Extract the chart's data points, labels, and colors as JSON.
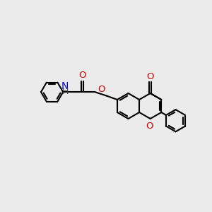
{
  "bg": "#ebebeb",
  "bc": "#000000",
  "Nc": "#0000cc",
  "Oc": "#cc0000",
  "lw": 1.5,
  "lw2": 1.5,
  "fs": 9.5,
  "xlim": [
    0,
    10
  ],
  "ylim": [
    1.5,
    8.5
  ]
}
